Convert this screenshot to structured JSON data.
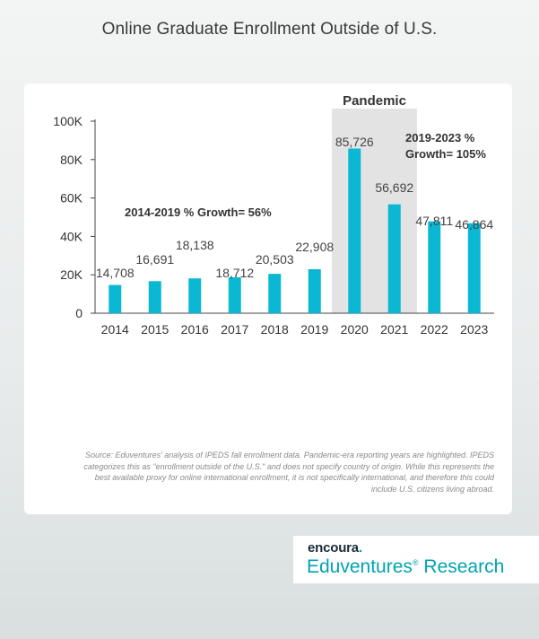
{
  "title": "Online Graduate Enrollment Outside of U.S.",
  "chart_data": {
    "type": "bar",
    "categories": [
      "2014",
      "2015",
      "2016",
      "2017",
      "2018",
      "2019",
      "2020",
      "2021",
      "2022",
      "2023"
    ],
    "values": [
      14708,
      16691,
      18138,
      18712,
      20503,
      22908,
      85726,
      56692,
      47811,
      46864
    ],
    "value_labels": [
      "14,708",
      "16,691",
      "18,138",
      "18,712",
      "20,503",
      "22,908",
      "85,726",
      "56,692",
      "47,811",
      "46,864"
    ],
    "ylim": [
      0,
      100000
    ],
    "yticks": [
      0,
      20000,
      40000,
      60000,
      80000,
      100000
    ],
    "ytick_labels": [
      "0",
      "20K",
      "40K",
      "60K",
      "80K",
      "100K"
    ],
    "highlight": {
      "label": "Pandemic",
      "from": "2020",
      "to": "2021"
    },
    "annotations": [
      {
        "lines": [
          "2014-2019 % Growth= 56%"
        ]
      },
      {
        "lines": [
          "2019-2023 %",
          "Growth= 105%"
        ]
      }
    ],
    "bar_color": "#0bb8d4",
    "highlight_color": "#e3e3e3",
    "grid": false
  },
  "source_note": "Source: Eduventures' analysis of IPEDS fall enrollment data. Pandemic-era reporting years are highlighted. IPEDS categorizes this as \"enrollment outside of the U.S.\" and does not specify country of origin. While this represents the best available proxy for online international enrollment, it is not specifically international, and therefore this could include U.S. citizens living abroad.",
  "logo": {
    "brand_main": "encoura",
    "brand_dot": ".",
    "product": "Eduventures",
    "reg": "®",
    "product_suffix": " Research"
  }
}
